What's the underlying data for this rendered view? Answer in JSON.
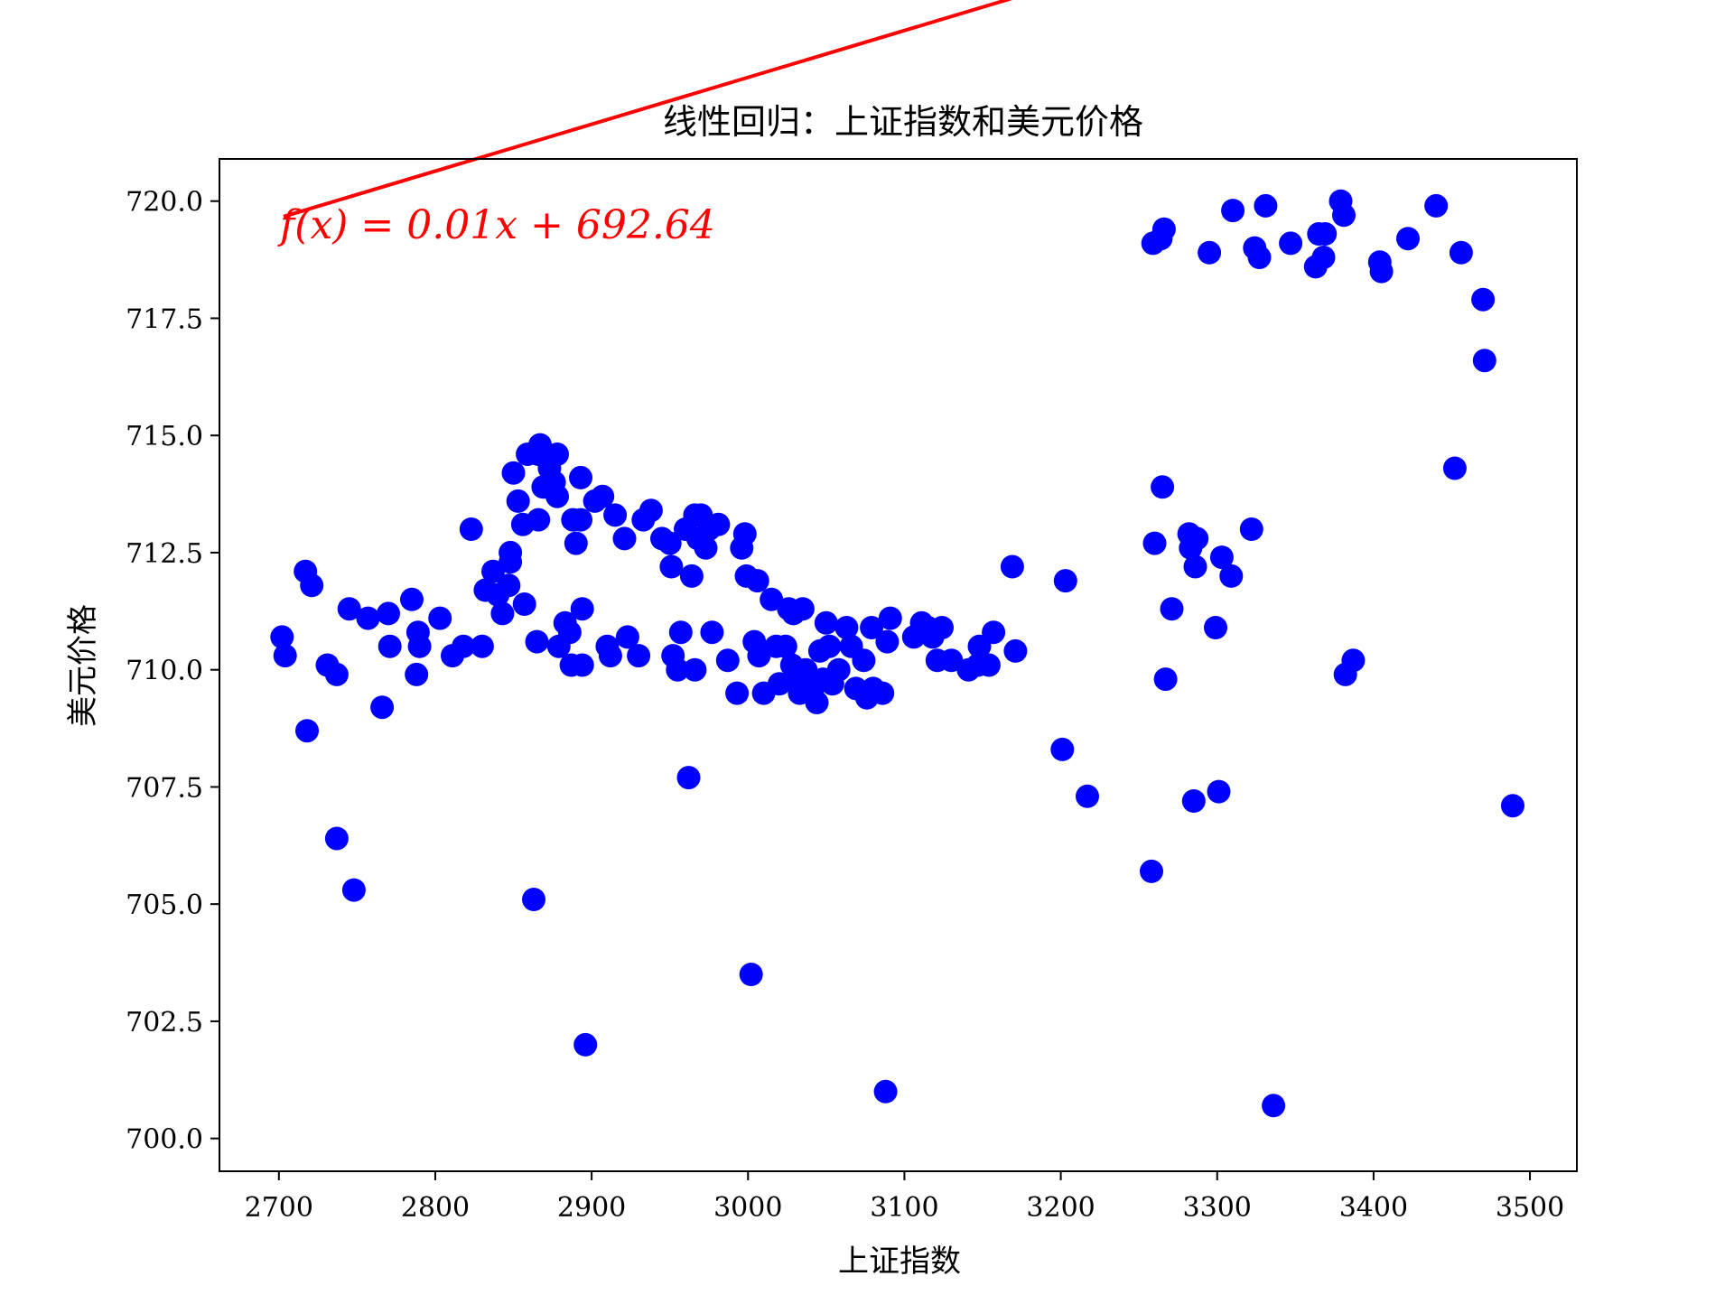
{
  "chart_data": {
    "type": "scatter",
    "title": "线性回归：上证指数和美元价格",
    "xlabel": "上证指数",
    "ylabel": "美元价格",
    "xlim": [
      2662,
      3530
    ],
    "ylim": [
      699.3,
      720.9
    ],
    "grid": false,
    "legend": "none",
    "x_ticks": [
      "2700",
      "2800",
      "2900",
      "3000",
      "3100",
      "3200",
      "3300",
      "3400",
      "3500"
    ],
    "y_ticks": [
      "700.0",
      "702.5",
      "705.0",
      "707.5",
      "710.0",
      "712.5",
      "715.0",
      "717.5",
      "720.0"
    ],
    "annotation": {
      "text": "f(x) = 0.01x + 692.64",
      "color": "#ff0000"
    },
    "regression": {
      "slope": 0.01,
      "intercept": 692.64,
      "x_start": 2703,
      "x_end": 3489,
      "color": "#ff0000"
    },
    "point_color": "#0000ff",
    "points": [
      [
        2702,
        710.7
      ],
      [
        2704,
        710.3
      ],
      [
        2717,
        712.1
      ],
      [
        2721,
        711.8
      ],
      [
        2718,
        708.7
      ],
      [
        2731,
        710.1
      ],
      [
        2737,
        709.9
      ],
      [
        2737,
        706.4
      ],
      [
        2748,
        705.3
      ],
      [
        2745,
        711.3
      ],
      [
        2757,
        711.1
      ],
      [
        2766,
        709.2
      ],
      [
        2770,
        711.2
      ],
      [
        2771,
        710.5
      ],
      [
        2785,
        711.5
      ],
      [
        2789,
        710.8
      ],
      [
        2790,
        710.5
      ],
      [
        2788,
        709.9
      ],
      [
        2803,
        711.1
      ],
      [
        2811,
        710.3
      ],
      [
        2818,
        710.5
      ],
      [
        2823,
        713.0
      ],
      [
        2830,
        710.5
      ],
      [
        2832,
        711.7
      ],
      [
        2837,
        712.1
      ],
      [
        2840,
        711.6
      ],
      [
        2843,
        711.2
      ],
      [
        2847,
        711.8
      ],
      [
        2848,
        712.5
      ],
      [
        2848,
        712.3
      ],
      [
        2850,
        714.2
      ],
      [
        2853,
        713.6
      ],
      [
        2857,
        711.4
      ],
      [
        2856,
        713.1
      ],
      [
        2859,
        714.6
      ],
      [
        2863,
        705.1
      ],
      [
        2866,
        714.6
      ],
      [
        2867,
        714.8
      ],
      [
        2866,
        713.2
      ],
      [
        2865,
        710.6
      ],
      [
        2869,
        713.9
      ],
      [
        2873,
        714.3
      ],
      [
        2876,
        714.0
      ],
      [
        2878,
        713.7
      ],
      [
        2878,
        714.6
      ],
      [
        2879,
        710.5
      ],
      [
        2883,
        711.0
      ],
      [
        2886,
        710.8
      ],
      [
        2887,
        710.1
      ],
      [
        2888,
        713.2
      ],
      [
        2890,
        712.7
      ],
      [
        2893,
        714.1
      ],
      [
        2893,
        713.2
      ],
      [
        2894,
        711.3
      ],
      [
        2894,
        710.1
      ],
      [
        2896,
        702.0
      ],
      [
        2902,
        713.6
      ],
      [
        2907,
        713.7
      ],
      [
        2910,
        710.5
      ],
      [
        2912,
        710.3
      ],
      [
        2915,
        713.3
      ],
      [
        2921,
        712.8
      ],
      [
        2923,
        710.7
      ],
      [
        2930,
        710.3
      ],
      [
        2933,
        713.2
      ],
      [
        2938,
        713.4
      ],
      [
        2945,
        712.8
      ],
      [
        2950,
        712.7
      ],
      [
        2951,
        712.2
      ],
      [
        2952,
        710.3
      ],
      [
        2955,
        710.0
      ],
      [
        2957,
        710.8
      ],
      [
        2960,
        713.0
      ],
      [
        2962,
        707.7
      ],
      [
        2964,
        712.0
      ],
      [
        2966,
        710.0
      ],
      [
        2966,
        713.3
      ],
      [
        2968,
        712.8
      ],
      [
        2970,
        713.3
      ],
      [
        2973,
        712.6
      ],
      [
        2975,
        713.0
      ],
      [
        2977,
        710.8
      ],
      [
        2981,
        713.1
      ],
      [
        2987,
        710.2
      ],
      [
        2993,
        709.5
      ],
      [
        2996,
        712.6
      ],
      [
        2998,
        712.9
      ],
      [
        2999,
        712.0
      ],
      [
        3002,
        703.5
      ],
      [
        3004,
        710.6
      ],
      [
        3006,
        711.9
      ],
      [
        3007,
        710.3
      ],
      [
        3010,
        709.5
      ],
      [
        3015,
        711.5
      ],
      [
        3018,
        710.5
      ],
      [
        3020,
        709.7
      ],
      [
        3024,
        710.5
      ],
      [
        3026,
        711.3
      ],
      [
        3028,
        710.1
      ],
      [
        3029,
        711.2
      ],
      [
        3031,
        709.8
      ],
      [
        3033,
        709.5
      ],
      [
        3035,
        711.3
      ],
      [
        3037,
        710.0
      ],
      [
        3039,
        709.8
      ],
      [
        3041,
        709.5
      ],
      [
        3044,
        709.3
      ],
      [
        3046,
        710.4
      ],
      [
        3048,
        709.8
      ],
      [
        3050,
        711.0
      ],
      [
        3052,
        710.5
      ],
      [
        3054,
        709.7
      ],
      [
        3058,
        710.0
      ],
      [
        3063,
        710.9
      ],
      [
        3066,
        710.5
      ],
      [
        3069,
        709.6
      ],
      [
        3074,
        710.2
      ],
      [
        3076,
        709.4
      ],
      [
        3079,
        710.9
      ],
      [
        3080,
        709.6
      ],
      [
        3086,
        709.5
      ],
      [
        3088,
        701.0
      ],
      [
        3089,
        710.6
      ],
      [
        3091,
        711.1
      ],
      [
        3106,
        710.7
      ],
      [
        3111,
        711.0
      ],
      [
        3115,
        710.9
      ],
      [
        3118,
        710.7
      ],
      [
        3121,
        710.2
      ],
      [
        3124,
        710.9
      ],
      [
        3130,
        710.2
      ],
      [
        3141,
        710.0
      ],
      [
        3147,
        710.1
      ],
      [
        3148,
        710.5
      ],
      [
        3154,
        710.1
      ],
      [
        3157,
        710.8
      ],
      [
        3169,
        712.2
      ],
      [
        3171,
        710.4
      ],
      [
        3201,
        708.3
      ],
      [
        3203,
        711.9
      ],
      [
        3217,
        707.3
      ],
      [
        3258,
        705.7
      ],
      [
        3259,
        719.1
      ],
      [
        3260,
        712.7
      ],
      [
        3264,
        719.2
      ],
      [
        3265,
        713.9
      ],
      [
        3266,
        719.4
      ],
      [
        3267,
        709.8
      ],
      [
        3271,
        711.3
      ],
      [
        3282,
        712.9
      ],
      [
        3283,
        712.6
      ],
      [
        3285,
        707.2
      ],
      [
        3286,
        712.2
      ],
      [
        3287,
        712.8
      ],
      [
        3295,
        718.9
      ],
      [
        3299,
        710.9
      ],
      [
        3301,
        707.4
      ],
      [
        3303,
        712.4
      ],
      [
        3309,
        712.0
      ],
      [
        3310,
        719.8
      ],
      [
        3322,
        713.0
      ],
      [
        3324,
        719.0
      ],
      [
        3327,
        718.8
      ],
      [
        3331,
        719.9
      ],
      [
        3336,
        700.7
      ],
      [
        3347,
        719.1
      ],
      [
        3363,
        718.6
      ],
      [
        3365,
        719.3
      ],
      [
        3368,
        718.8
      ],
      [
        3369,
        719.3
      ],
      [
        3379,
        720.0
      ],
      [
        3381,
        719.7
      ],
      [
        3382,
        709.9
      ],
      [
        3387,
        710.2
      ],
      [
        3404,
        718.7
      ],
      [
        3405,
        718.5
      ],
      [
        3422,
        719.2
      ],
      [
        3440,
        719.9
      ],
      [
        3452,
        714.3
      ],
      [
        3456,
        718.9
      ],
      [
        3470,
        717.9
      ],
      [
        3471,
        716.6
      ],
      [
        3489,
        707.1
      ]
    ]
  }
}
